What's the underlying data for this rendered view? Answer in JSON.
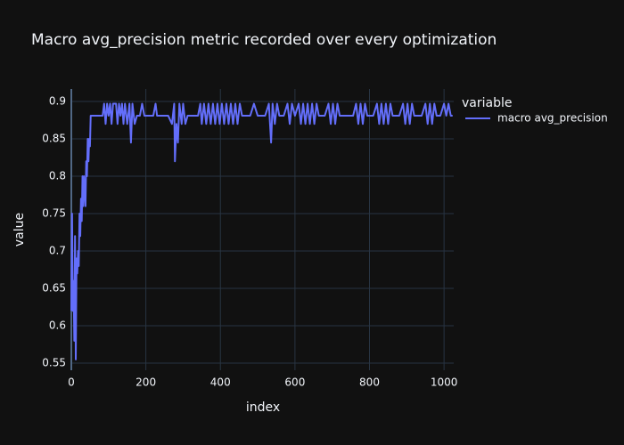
{
  "chart_data": {
    "type": "line",
    "title": "Macro avg_precision metric recorded over every optimization",
    "x_label": "index",
    "y_label": "value",
    "legend_title": "variable",
    "x": [
      0,
      2,
      4,
      6,
      8,
      10,
      12,
      14,
      16,
      18,
      20,
      22,
      24,
      26,
      28,
      30,
      32,
      34,
      36,
      38,
      40,
      42,
      44,
      46,
      48,
      50,
      52,
      84,
      88,
      92,
      96,
      100,
      104,
      108,
      112,
      120,
      124,
      128,
      132,
      136,
      140,
      144,
      150,
      156,
      160,
      164,
      170,
      176,
      184,
      190,
      196,
      210,
      220,
      226,
      230,
      250,
      260,
      270,
      276,
      278,
      282,
      286,
      290,
      296,
      300,
      306,
      312,
      330,
      340,
      346,
      350,
      356,
      362,
      368,
      374,
      380,
      386,
      392,
      398,
      404,
      410,
      416,
      422,
      428,
      434,
      440,
      446,
      452,
      458,
      470,
      480,
      490,
      500,
      520,
      530,
      536,
      540,
      546,
      552,
      558,
      570,
      580,
      586,
      592,
      600,
      610,
      616,
      622,
      628,
      634,
      640,
      646,
      652,
      658,
      664,
      680,
      690,
      696,
      702,
      708,
      714,
      720,
      740,
      756,
      764,
      770,
      776,
      782,
      788,
      794,
      810,
      820,
      826,
      832,
      838,
      844,
      850,
      856,
      862,
      880,
      890,
      896,
      902,
      908,
      914,
      920,
      940,
      950,
      956,
      962,
      968,
      974,
      980,
      990,
      1000,
      1006,
      1012,
      1018,
      1023
    ],
    "series": [
      {
        "name": "macro avg_precision",
        "color": "#636efa",
        "values": [
          0.62,
          0.75,
          0.62,
          0.66,
          0.58,
          0.72,
          0.555,
          0.69,
          0.67,
          0.7,
          0.68,
          0.75,
          0.72,
          0.77,
          0.74,
          0.8,
          0.76,
          0.8,
          0.78,
          0.76,
          0.82,
          0.8,
          0.85,
          0.82,
          0.85,
          0.84,
          0.881,
          0.881,
          0.897,
          0.87,
          0.897,
          0.881,
          0.897,
          0.87,
          0.897,
          0.897,
          0.87,
          0.897,
          0.881,
          0.897,
          0.87,
          0.897,
          0.87,
          0.897,
          0.845,
          0.897,
          0.87,
          0.881,
          0.881,
          0.897,
          0.881,
          0.881,
          0.881,
          0.897,
          0.881,
          0.881,
          0.881,
          0.87,
          0.897,
          0.82,
          0.87,
          0.845,
          0.897,
          0.87,
          0.897,
          0.87,
          0.881,
          0.881,
          0.881,
          0.897,
          0.87,
          0.897,
          0.87,
          0.897,
          0.87,
          0.897,
          0.87,
          0.897,
          0.87,
          0.897,
          0.87,
          0.897,
          0.87,
          0.897,
          0.87,
          0.897,
          0.87,
          0.897,
          0.881,
          0.881,
          0.881,
          0.897,
          0.881,
          0.881,
          0.897,
          0.845,
          0.897,
          0.87,
          0.897,
          0.881,
          0.881,
          0.897,
          0.87,
          0.897,
          0.881,
          0.897,
          0.87,
          0.897,
          0.87,
          0.897,
          0.87,
          0.897,
          0.87,
          0.897,
          0.881,
          0.881,
          0.897,
          0.87,
          0.897,
          0.87,
          0.897,
          0.881,
          0.881,
          0.881,
          0.897,
          0.87,
          0.897,
          0.87,
          0.897,
          0.881,
          0.881,
          0.897,
          0.87,
          0.897,
          0.87,
          0.897,
          0.87,
          0.897,
          0.881,
          0.881,
          0.897,
          0.87,
          0.897,
          0.87,
          0.897,
          0.881,
          0.881,
          0.897,
          0.87,
          0.897,
          0.87,
          0.897,
          0.881,
          0.881,
          0.897,
          0.881,
          0.897,
          0.881,
          0.881
        ]
      }
    ],
    "xlim": [
      0,
      1026
    ],
    "xticks": [
      0,
      200,
      400,
      600,
      800,
      1000
    ],
    "ylim": [
      0.5405,
      0.9167
    ],
    "yticks": [
      0.55,
      0.6,
      0.65,
      0.7,
      0.75,
      0.8,
      0.85,
      0.9
    ],
    "grid": true
  }
}
